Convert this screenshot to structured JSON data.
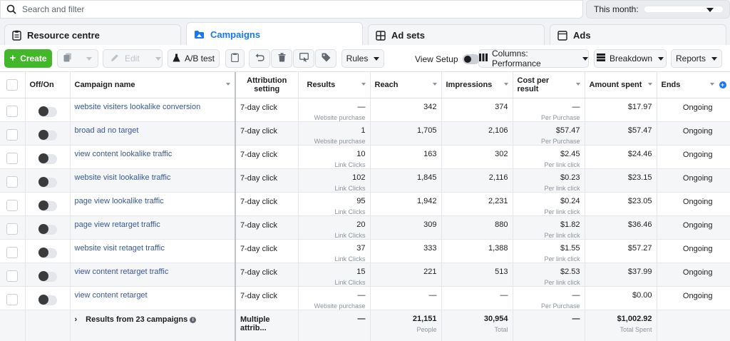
{
  "search": {
    "placeholder": "Search and filter"
  },
  "date_range": {
    "label": "This month:"
  },
  "tabs": [
    {
      "label": "Resource centre",
      "icon": "clipboard-icon"
    },
    {
      "label": "Campaigns",
      "icon": "folder-icon"
    },
    {
      "label": "Ad sets",
      "icon": "grid-icon"
    },
    {
      "label": "Ads",
      "icon": "ad-icon"
    }
  ],
  "toolbar": {
    "create": "Create",
    "edit": "Edit",
    "ab_test": "A/B test",
    "rules": "Rules",
    "view_setup": "View Setup",
    "columns": "Columns: Performance",
    "breakdown": "Breakdown",
    "reports": "Reports"
  },
  "columns": {
    "offon": "Off/On",
    "name": "Campaign name",
    "attribution": "Attribution setting",
    "results": "Results",
    "reach": "Reach",
    "impressions": "Impressions",
    "cpr": "Cost per result",
    "spent": "Amount spent",
    "ends": "Ends"
  },
  "rows": [
    {
      "name": "website visiters lookalike conversion",
      "attr": "7-day click",
      "results": "—",
      "results_sub": "Website purchase",
      "reach": "342",
      "impr": "374",
      "cpr": "—",
      "cpr_sub": "Per Purchase",
      "spent": "$17.97",
      "ends": "Ongoing"
    },
    {
      "name": "broad ad no target",
      "attr": "7-day click",
      "results": "1",
      "results_sub": "Website purchase",
      "reach": "1,705",
      "impr": "2,106",
      "cpr": "$57.47",
      "cpr_sub": "Per Purchase",
      "spent": "$57.47",
      "ends": "Ongoing"
    },
    {
      "name": "view content lookalike traffic",
      "attr": "7-day click",
      "results": "10",
      "results_sub": "Link Clicks",
      "reach": "163",
      "impr": "302",
      "cpr": "$2.45",
      "cpr_sub": "Per link click",
      "spent": "$24.46",
      "ends": "Ongoing"
    },
    {
      "name": "website visit lookalike traffic",
      "attr": "7-day click",
      "results": "102",
      "results_sub": "Link Clicks",
      "reach": "1,845",
      "impr": "2,116",
      "cpr": "$0.23",
      "cpr_sub": "Per link click",
      "spent": "$23.15",
      "ends": "Ongoing"
    },
    {
      "name": "page view lookalike traffic",
      "attr": "7-day click",
      "results": "95",
      "results_sub": "Link Clicks",
      "reach": "1,942",
      "impr": "2,231",
      "cpr": "$0.24",
      "cpr_sub": "Per link click",
      "spent": "$23.05",
      "ends": "Ongoing"
    },
    {
      "name": "page view retarget traffic",
      "attr": "7-day click",
      "results": "20",
      "results_sub": "Link Clicks",
      "reach": "309",
      "impr": "880",
      "cpr": "$1.82",
      "cpr_sub": "Per link click",
      "spent": "$36.46",
      "ends": "Ongoing"
    },
    {
      "name": "website visit retaget traffic",
      "attr": "7-day click",
      "results": "37",
      "results_sub": "Link Clicks",
      "reach": "333",
      "impr": "1,388",
      "cpr": "$1.55",
      "cpr_sub": "Per link click",
      "spent": "$57.27",
      "ends": "Ongoing"
    },
    {
      "name": "view content retarget traffic",
      "attr": "7-day click",
      "results": "15",
      "results_sub": "Link Clicks",
      "reach": "221",
      "impr": "513",
      "cpr": "$2.53",
      "cpr_sub": "Per link click",
      "spent": "$37.99",
      "ends": "Ongoing"
    },
    {
      "name": "view content retarget",
      "attr": "7-day click",
      "results": "—",
      "results_sub": "Website purchase",
      "reach": "—",
      "impr": "—",
      "cpr": "—",
      "cpr_sub": "Per Purchase",
      "spent": "$0.00",
      "ends": "Ongoing"
    }
  ],
  "footer": {
    "label": "Results from 23 campaigns",
    "attr": "Multiple attrib...",
    "results": "—",
    "reach": "21,151",
    "reach_sub": "People",
    "impr": "30,954",
    "impr_sub": "Total",
    "cpr": "—",
    "spent": "$1,002.92",
    "spent_sub": "Total Spent"
  },
  "colors": {
    "accent": "#1877f2",
    "create": "#42b72a",
    "link": "#385898"
  }
}
